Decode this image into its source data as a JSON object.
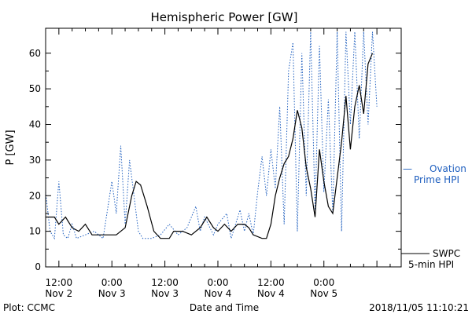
{
  "chart_data": {
    "type": "line",
    "title": "Hemispheric Power [GW]",
    "ylabel": "P [GW]",
    "xlabel": "Date and Time",
    "xlim": [
      "2018-11-02 09:00",
      "2018-11-05 17:30"
    ],
    "ylim": [
      0,
      67
    ],
    "yticks": [
      0,
      10,
      20,
      30,
      40,
      50,
      60
    ],
    "xticks": [
      {
        "at": "2018-11-02 12:00",
        "time": "12:00",
        "date": "Nov 2"
      },
      {
        "at": "2018-11-03 00:00",
        "time": "0:00",
        "date": "Nov 3"
      },
      {
        "at": "2018-11-03 12:00",
        "time": "12:00",
        "date": "Nov 3"
      },
      {
        "at": "2018-11-04 00:00",
        "time": "0:00",
        "date": "Nov 4"
      },
      {
        "at": "2018-11-04 12:00",
        "time": "12:00",
        "date": "Nov 4"
      },
      {
        "at": "2018-11-05 00:00",
        "time": "0:00",
        "date": "Nov 5"
      }
    ],
    "series": [
      {
        "name": "SWPC 5-min HPI",
        "color": "#000000",
        "style": "solid",
        "points": [
          [
            "2018-11-02 09:00",
            14
          ],
          [
            "2018-11-02 11:00",
            14
          ],
          [
            "2018-11-02 12:00",
            12
          ],
          [
            "2018-11-02 13:30",
            14
          ],
          [
            "2018-11-02 15:00",
            11
          ],
          [
            "2018-11-02 16:30",
            10
          ],
          [
            "2018-11-02 18:00",
            12
          ],
          [
            "2018-11-02 19:30",
            9
          ],
          [
            "2018-11-02 22:00",
            9
          ],
          [
            "2018-11-03 01:00",
            9
          ],
          [
            "2018-11-03 03:00",
            11
          ],
          [
            "2018-11-03 04:30",
            20
          ],
          [
            "2018-11-03 05:30",
            24
          ],
          [
            "2018-11-03 06:30",
            23
          ],
          [
            "2018-11-03 08:00",
            17
          ],
          [
            "2018-11-03 09:30",
            10
          ],
          [
            "2018-11-03 11:00",
            8
          ],
          [
            "2018-11-03 13:00",
            8
          ],
          [
            "2018-11-03 14:00",
            10
          ],
          [
            "2018-11-03 16:00",
            10
          ],
          [
            "2018-11-03 18:00",
            9
          ],
          [
            "2018-11-03 20:00",
            11
          ],
          [
            "2018-11-03 21:30",
            14
          ],
          [
            "2018-11-03 23:00",
            11
          ],
          [
            "2018-11-04 00:00",
            10
          ],
          [
            "2018-11-04 01:30",
            12
          ],
          [
            "2018-11-04 03:00",
            10
          ],
          [
            "2018-11-04 04:30",
            12
          ],
          [
            "2018-11-04 06:00",
            12
          ],
          [
            "2018-11-04 07:00",
            11
          ],
          [
            "2018-11-04 08:00",
            9
          ],
          [
            "2018-11-04 10:00",
            8
          ],
          [
            "2018-11-04 11:00",
            8
          ],
          [
            "2018-11-04 12:00",
            12
          ],
          [
            "2018-11-04 13:00",
            20
          ],
          [
            "2018-11-04 14:00",
            25
          ],
          [
            "2018-11-04 15:00",
            29
          ],
          [
            "2018-11-04 16:00",
            31
          ],
          [
            "2018-11-04 17:00",
            36
          ],
          [
            "2018-11-04 18:00",
            44
          ],
          [
            "2018-11-04 19:00",
            39
          ],
          [
            "2018-11-04 20:00",
            28
          ],
          [
            "2018-11-04 21:00",
            22
          ],
          [
            "2018-11-04 22:00",
            14
          ],
          [
            "2018-11-04 23:00",
            33
          ],
          [
            "2018-11-05 00:00",
            24
          ],
          [
            "2018-11-05 01:00",
            17
          ],
          [
            "2018-11-05 02:00",
            15
          ],
          [
            "2018-11-05 03:00",
            25
          ],
          [
            "2018-11-05 04:00",
            35
          ],
          [
            "2018-11-05 05:00",
            48
          ],
          [
            "2018-11-05 06:00",
            33
          ],
          [
            "2018-11-05 07:00",
            45
          ],
          [
            "2018-11-05 08:00",
            51
          ],
          [
            "2018-11-05 09:00",
            43
          ],
          [
            "2018-11-05 10:00",
            57
          ],
          [
            "2018-11-05 11:00",
            60
          ]
        ]
      },
      {
        "name": "Ovation Prime HPI",
        "color": "#1f5fbf",
        "style": "dotted",
        "points": [
          [
            "2018-11-02 09:00",
            21
          ],
          [
            "2018-11-02 10:00",
            10
          ],
          [
            "2018-11-02 11:00",
            8
          ],
          [
            "2018-11-02 12:00",
            24
          ],
          [
            "2018-11-02 13:00",
            9
          ],
          [
            "2018-11-02 14:00",
            8
          ],
          [
            "2018-11-02 15:00",
            12
          ],
          [
            "2018-11-02 16:00",
            8
          ],
          [
            "2018-11-02 18:00",
            9
          ],
          [
            "2018-11-02 20:00",
            10
          ],
          [
            "2018-11-02 22:00",
            8
          ],
          [
            "2018-11-03 00:00",
            24
          ],
          [
            "2018-11-03 01:00",
            15
          ],
          [
            "2018-11-03 02:00",
            34
          ],
          [
            "2018-11-03 03:00",
            12
          ],
          [
            "2018-11-03 04:00",
            30
          ],
          [
            "2018-11-03 05:00",
            20
          ],
          [
            "2018-11-03 06:00",
            10
          ],
          [
            "2018-11-03 07:00",
            8
          ],
          [
            "2018-11-03 09:00",
            8
          ],
          [
            "2018-11-03 11:00",
            9
          ],
          [
            "2018-11-03 13:00",
            12
          ],
          [
            "2018-11-03 15:00",
            9
          ],
          [
            "2018-11-03 17:00",
            11
          ],
          [
            "2018-11-03 19:00",
            17
          ],
          [
            "2018-11-03 20:00",
            10
          ],
          [
            "2018-11-03 21:00",
            14
          ],
          [
            "2018-11-03 23:00",
            9
          ],
          [
            "2018-11-04 00:00",
            12
          ],
          [
            "2018-11-04 02:00",
            15
          ],
          [
            "2018-11-04 03:00",
            8
          ],
          [
            "2018-11-04 05:00",
            16
          ],
          [
            "2018-11-04 06:00",
            10
          ],
          [
            "2018-11-04 07:00",
            15
          ],
          [
            "2018-11-04 08:00",
            9
          ],
          [
            "2018-11-04 09:00",
            21
          ],
          [
            "2018-11-04 10:00",
            31
          ],
          [
            "2018-11-04 11:00",
            20
          ],
          [
            "2018-11-04 12:00",
            33
          ],
          [
            "2018-11-04 13:00",
            22
          ],
          [
            "2018-11-04 14:00",
            45
          ],
          [
            "2018-11-04 15:00",
            12
          ],
          [
            "2018-11-04 16:00",
            55
          ],
          [
            "2018-11-04 17:00",
            63
          ],
          [
            "2018-11-04 18:00",
            10
          ],
          [
            "2018-11-04 19:00",
            60
          ],
          [
            "2018-11-04 20:00",
            20
          ],
          [
            "2018-11-04 21:00",
            66
          ],
          [
            "2018-11-04 22:00",
            16
          ],
          [
            "2018-11-04 23:00",
            62
          ],
          [
            "2018-11-05 00:00",
            21
          ],
          [
            "2018-11-05 01:00",
            47
          ],
          [
            "2018-11-05 02:00",
            15
          ],
          [
            "2018-11-05 03:00",
            66
          ],
          [
            "2018-11-05 04:00",
            10
          ],
          [
            "2018-11-05 05:00",
            66
          ],
          [
            "2018-11-05 06:00",
            40
          ],
          [
            "2018-11-05 07:00",
            66
          ],
          [
            "2018-11-05 08:00",
            36
          ],
          [
            "2018-11-05 09:00",
            66
          ],
          [
            "2018-11-05 10:00",
            40
          ],
          [
            "2018-11-05 11:00",
            66
          ],
          [
            "2018-11-05 12:00",
            45
          ]
        ]
      }
    ],
    "legend": [
      {
        "marker": "—",
        "text_lines": [
          "Ovation",
          "Prime HPI"
        ],
        "color": "#1f5fbf"
      },
      {
        "text_lines": [
          "SWPC",
          "5-min HPI"
        ],
        "color": "#000000"
      }
    ],
    "legend_placement": "right",
    "grid": false
  },
  "footer": {
    "left": "Plot: CCMC",
    "right": "2018/11/05 11:10:21"
  }
}
